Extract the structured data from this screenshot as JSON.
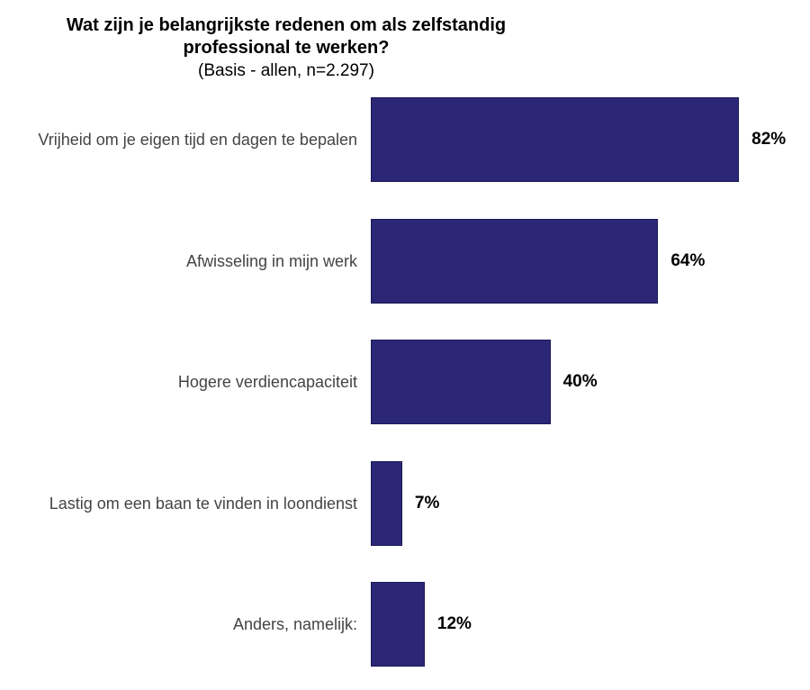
{
  "chart_data": {
    "type": "bar",
    "orientation": "horizontal",
    "title": "Wat zijn je belangrijkste redenen om als zelfstandig professional te werken?",
    "subtitle": "(Basis - allen, n=2.297)",
    "categories": [
      "Vrijheid om je eigen tijd en dagen te bepalen",
      "Afwisseling in mijn werk",
      "Hogere verdiencapaciteit",
      "Lastig om een baan te vinden in loondienst",
      "Anders, namelijk:"
    ],
    "values": [
      82,
      64,
      40,
      7,
      12
    ],
    "value_labels": [
      "82%",
      "64%",
      "40%",
      "7%",
      "12%"
    ],
    "color": "#2b2776"
  }
}
